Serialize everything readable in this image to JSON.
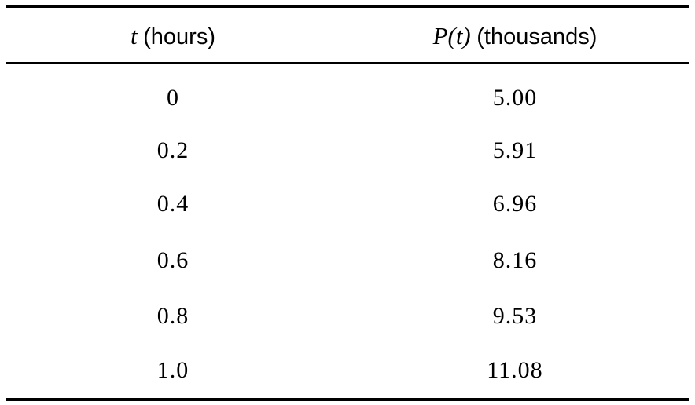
{
  "table": {
    "header": [
      {
        "symbol": "t",
        "unit": "(hours)"
      },
      {
        "symbol": "P(t)",
        "unit": "(thousands)"
      }
    ],
    "rows": [
      [
        "0",
        "5.00"
      ],
      [
        "0.2",
        "5.91"
      ],
      [
        "0.4",
        "6.96"
      ],
      [
        "0.6",
        "8.16"
      ],
      [
        "0.8",
        "9.53"
      ],
      [
        "1.0",
        "11.08"
      ]
    ]
  }
}
